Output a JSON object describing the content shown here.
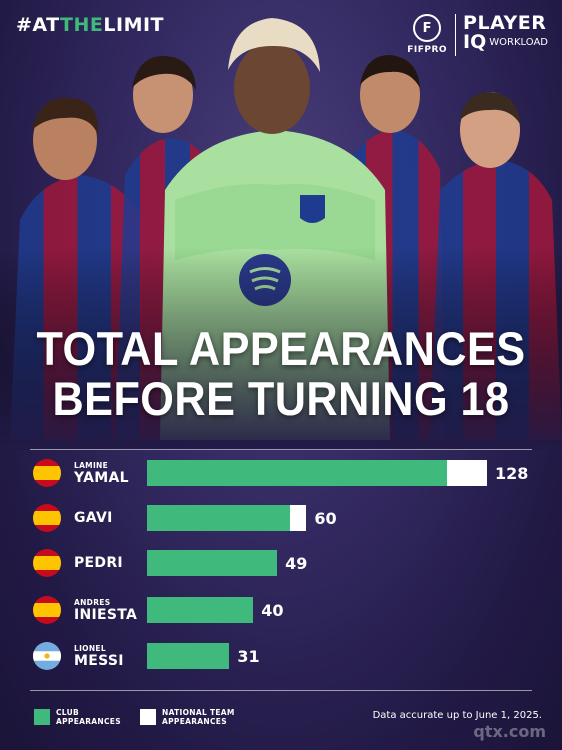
{
  "hashtag": {
    "prefix": "#AT",
    "highlight": "THE",
    "suffix": "LIMIT"
  },
  "logo": {
    "fifpro_mark": "F",
    "fifpro": "FIFPRO",
    "player": "PLAYER",
    "iq": "IQ",
    "workload": "WORKLOAD"
  },
  "headline": {
    "line1": "TOTAL APPEARANCES",
    "line2": "BEFORE TURNING 18"
  },
  "colors": {
    "club": "#3fb97c",
    "national": "#ffffff",
    "accent": "#3fb97c"
  },
  "chart_data": {
    "type": "bar",
    "orientation": "horizontal",
    "stacked": true,
    "title": "TOTAL APPEARANCES BEFORE TURNING 18",
    "categories": [
      "LAMINE YAMAL",
      "GAVI",
      "PEDRI",
      "ANDRES INIESTA",
      "LIONEL MESSI"
    ],
    "players": [
      {
        "first": "LAMINE",
        "last": "YAMAL",
        "flag": "spain",
        "total": 128,
        "club": 113,
        "national": 15
      },
      {
        "first": "",
        "last": "GAVI",
        "flag": "spain",
        "total": 60,
        "club": 54,
        "national": 6
      },
      {
        "first": "",
        "last": "PEDRI",
        "flag": "spain",
        "total": 49,
        "club": 49,
        "national": 0
      },
      {
        "first": "ANDRES",
        "last": "INIESTA",
        "flag": "spain",
        "total": 40,
        "club": 40,
        "national": 0
      },
      {
        "first": "LIONEL",
        "last": "MESSI",
        "flag": "argentina",
        "total": 31,
        "club": 31,
        "national": 0
      }
    ],
    "series": [
      {
        "name": "CLUB APPEARANCES",
        "values": [
          113,
          54,
          49,
          40,
          31
        ]
      },
      {
        "name": "NATIONAL TEAM APPEARANCES",
        "values": [
          15,
          6,
          0,
          0,
          0
        ]
      }
    ],
    "xlim": [
      0,
      128
    ],
    "legend_position": "bottom-left"
  },
  "legend": {
    "club_l1": "CLUB",
    "club_l2": "APPEARANCES",
    "nat_l1": "NATIONAL TEAM",
    "nat_l2": "APPEARANCES"
  },
  "note": "Data accurate up to June 1, 2025.",
  "watermark": "qtx.com"
}
